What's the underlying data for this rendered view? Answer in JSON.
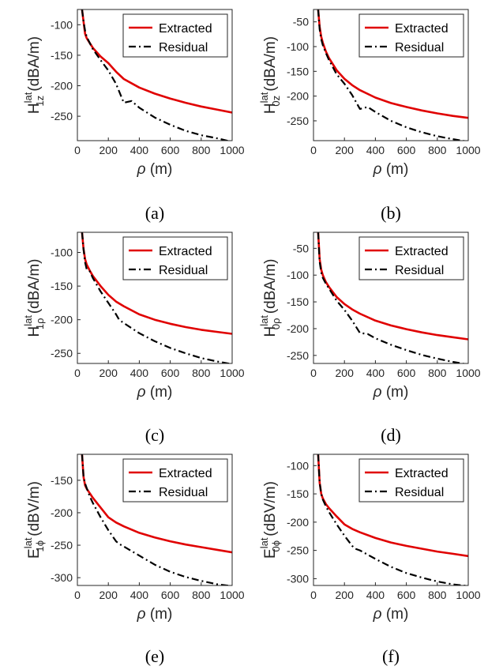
{
  "colors": {
    "extracted": "#e00000",
    "residual": "#000000",
    "axis": "#262626"
  },
  "chart_data": [
    {
      "type": "line",
      "caption": "(a)",
      "ylabel": {
        "main": "H",
        "sup": "lat",
        "sub": "1z",
        "unit": "(dBA/m)"
      },
      "xlabel": {
        "symbol": "ρ",
        "unit": "(m)"
      },
      "xlim": [
        0,
        1000
      ],
      "ylim": [
        -290,
        -75
      ],
      "xticks": [
        0,
        200,
        400,
        600,
        800,
        1000
      ],
      "yticks": [
        -100,
        -150,
        -200,
        -250
      ],
      "legend": [
        "Extracted",
        "Residual"
      ],
      "legend_position": "top-right",
      "series": [
        {
          "name": "Extracted",
          "x": [
            30,
            40,
            50,
            60,
            80,
            100,
            150,
            200,
            250,
            300,
            400,
            500,
            600,
            700,
            800,
            900,
            1000
          ],
          "y": [
            -75,
            -95,
            -115,
            -122,
            -130,
            -138,
            -152,
            -163,
            -177,
            -189,
            -203,
            -213,
            -221,
            -228,
            -234,
            -239,
            -244
          ]
        },
        {
          "name": "Residual",
          "x": [
            30,
            40,
            50,
            60,
            80,
            100,
            150,
            200,
            250,
            300,
            350,
            400,
            500,
            600,
            700,
            800,
            900,
            1000
          ],
          "y": [
            -75,
            -95,
            -110,
            -120,
            -130,
            -140,
            -158,
            -175,
            -197,
            -228,
            -225,
            -236,
            -252,
            -264,
            -274,
            -281,
            -286,
            -292
          ]
        }
      ]
    },
    {
      "type": "line",
      "caption": "(b)",
      "ylabel": {
        "main": "H",
        "sup": "lat",
        "sub": "0z",
        "unit": "(dBA/m)"
      },
      "xlabel": {
        "symbol": "ρ",
        "unit": "(m)"
      },
      "xlim": [
        0,
        1000
      ],
      "ylim": [
        -290,
        -25
      ],
      "xticks": [
        0,
        200,
        400,
        600,
        800,
        1000
      ],
      "yticks": [
        -50,
        -100,
        -150,
        -200,
        -250
      ],
      "legend": [
        "Extracted",
        "Residual"
      ],
      "legend_position": "top-right",
      "series": [
        {
          "name": "Extracted",
          "x": [
            30,
            40,
            50,
            60,
            80,
            100,
            150,
            200,
            250,
            300,
            400,
            500,
            600,
            700,
            800,
            900,
            1000
          ],
          "y": [
            -25,
            -60,
            -80,
            -92,
            -110,
            -123,
            -148,
            -165,
            -178,
            -188,
            -203,
            -214,
            -222,
            -229,
            -235,
            -240,
            -244
          ]
        },
        {
          "name": "Residual",
          "x": [
            30,
            40,
            50,
            60,
            80,
            100,
            150,
            200,
            250,
            300,
            350,
            400,
            500,
            600,
            700,
            800,
            900,
            1000
          ],
          "y": [
            -25,
            -65,
            -85,
            -97,
            -113,
            -127,
            -156,
            -175,
            -198,
            -226,
            -222,
            -232,
            -250,
            -263,
            -273,
            -281,
            -287,
            -292
          ]
        }
      ]
    },
    {
      "type": "line",
      "caption": "(c)",
      "ylabel": {
        "main": "H",
        "sup": "lat",
        "sub": "1ρ",
        "unit": "(dBA/m)"
      },
      "xlabel": {
        "symbol": "ρ",
        "unit": "(m)"
      },
      "xlim": [
        0,
        1000
      ],
      "ylim": [
        -265,
        -70
      ],
      "xticks": [
        0,
        200,
        400,
        600,
        800,
        1000
      ],
      "yticks": [
        -100,
        -150,
        -200,
        -250
      ],
      "legend": [
        "Extracted",
        "Residual"
      ],
      "legend_position": "top-right",
      "series": [
        {
          "name": "Extracted",
          "x": [
            30,
            40,
            50,
            60,
            80,
            100,
            150,
            200,
            250,
            300,
            400,
            500,
            600,
            700,
            800,
            900,
            1000
          ],
          "y": [
            -70,
            -95,
            -110,
            -118,
            -127,
            -135,
            -150,
            -163,
            -173,
            -180,
            -192,
            -200,
            -206,
            -211,
            -215,
            -218,
            -221
          ]
        },
        {
          "name": "Residual",
          "x": [
            30,
            40,
            50,
            60,
            80,
            100,
            150,
            200,
            250,
            270,
            300,
            400,
            500,
            600,
            700,
            800,
            900,
            1000
          ],
          "y": [
            -70,
            -95,
            -115,
            -125,
            -128,
            -138,
            -158,
            -175,
            -192,
            -200,
            -205,
            -220,
            -232,
            -242,
            -250,
            -257,
            -262,
            -266
          ]
        }
      ]
    },
    {
      "type": "line",
      "caption": "(d)",
      "ylabel": {
        "main": "H",
        "sup": "lat",
        "sub": "0ρ",
        "unit": "(dBA/m)"
      },
      "xlabel": {
        "symbol": "ρ",
        "unit": "(m)"
      },
      "xlim": [
        0,
        1000
      ],
      "ylim": [
        -265,
        -20
      ],
      "xticks": [
        0,
        200,
        400,
        600,
        800,
        1000
      ],
      "yticks": [
        -50,
        -100,
        -150,
        -200,
        -250
      ],
      "legend": [
        "Extracted",
        "Residual"
      ],
      "legend_position": "top-right",
      "series": [
        {
          "name": "Extracted",
          "x": [
            30,
            40,
            50,
            60,
            80,
            100,
            150,
            200,
            250,
            300,
            400,
            500,
            600,
            700,
            800,
            900,
            1000
          ],
          "y": [
            -20,
            -70,
            -90,
            -100,
            -113,
            -122,
            -141,
            -154,
            -164,
            -172,
            -185,
            -194,
            -201,
            -207,
            -212,
            -216,
            -220
          ]
        },
        {
          "name": "Residual",
          "x": [
            30,
            40,
            50,
            60,
            80,
            100,
            150,
            200,
            250,
            300,
            350,
            400,
            500,
            600,
            700,
            800,
            900,
            1000
          ],
          "y": [
            -20,
            -75,
            -95,
            -105,
            -116,
            -125,
            -148,
            -165,
            -185,
            -208,
            -210,
            -218,
            -230,
            -240,
            -249,
            -256,
            -262,
            -267
          ]
        }
      ]
    },
    {
      "type": "line",
      "caption": "(e)",
      "ylabel": {
        "main": "E",
        "sup": "lat",
        "sub": "1ϕ",
        "unit": "(dBV/m)"
      },
      "xlabel": {
        "symbol": "ρ",
        "unit": "(m)"
      },
      "xlim": [
        0,
        1000
      ],
      "ylim": [
        -312,
        -110
      ],
      "xticks": [
        0,
        200,
        400,
        600,
        800,
        1000
      ],
      "yticks": [
        -150,
        -200,
        -250,
        -300
      ],
      "legend": [
        "Extracted",
        "Residual"
      ],
      "legend_position": "top-right",
      "series": [
        {
          "name": "Extracted",
          "x": [
            30,
            40,
            50,
            60,
            80,
            100,
            150,
            200,
            250,
            300,
            400,
            500,
            600,
            700,
            800,
            900,
            1000
          ],
          "y": [
            -110,
            -145,
            -158,
            -163,
            -170,
            -177,
            -192,
            -207,
            -215,
            -221,
            -231,
            -238,
            -244,
            -249,
            -253,
            -257,
            -261
          ]
        },
        {
          "name": "Residual",
          "x": [
            30,
            40,
            50,
            60,
            80,
            100,
            150,
            200,
            250,
            270,
            300,
            400,
            500,
            600,
            700,
            800,
            900,
            1000
          ],
          "y": [
            -110,
            -145,
            -155,
            -162,
            -175,
            -185,
            -207,
            -227,
            -244,
            -248,
            -252,
            -266,
            -280,
            -291,
            -299,
            -305,
            -310,
            -313
          ]
        }
      ]
    },
    {
      "type": "line",
      "caption": "(f)",
      "ylabel": {
        "main": "E",
        "sup": "lat",
        "sub": "0ϕ",
        "unit": "(dBV/m)"
      },
      "xlabel": {
        "symbol": "ρ",
        "unit": "(m)"
      },
      "xlim": [
        0,
        1000
      ],
      "ylim": [
        -312,
        -80
      ],
      "xticks": [
        0,
        200,
        400,
        600,
        800,
        1000
      ],
      "yticks": [
        -100,
        -150,
        -200,
        -250,
        -300
      ],
      "legend": [
        "Extracted",
        "Residual"
      ],
      "legend_position": "top-right",
      "series": [
        {
          "name": "Extracted",
          "x": [
            30,
            40,
            50,
            60,
            80,
            100,
            150,
            200,
            250,
            300,
            400,
            500,
            600,
            700,
            800,
            900,
            1000
          ],
          "y": [
            -80,
            -130,
            -150,
            -158,
            -168,
            -175,
            -190,
            -204,
            -212,
            -218,
            -228,
            -236,
            -242,
            -247,
            -252,
            -256,
            -260
          ]
        },
        {
          "name": "Residual",
          "x": [
            30,
            40,
            50,
            60,
            80,
            100,
            150,
            200,
            250,
            270,
            300,
            400,
            500,
            600,
            700,
            800,
            900,
            1000
          ],
          "y": [
            -80,
            -130,
            -150,
            -160,
            -172,
            -182,
            -204,
            -224,
            -242,
            -247,
            -250,
            -265,
            -279,
            -290,
            -298,
            -305,
            -310,
            -313
          ]
        }
      ]
    }
  ]
}
